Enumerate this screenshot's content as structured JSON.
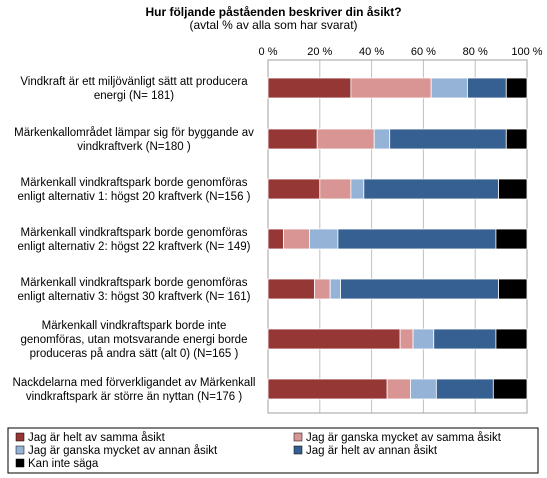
{
  "chart_data": {
    "type": "bar",
    "orientation": "horizontal",
    "stacked": true,
    "title": "Hur följande påståenden beskriver din åsikt?",
    "subtitle": "(avtal % av alla som har svarat)",
    "xlim": [
      0,
      100
    ],
    "xticks": [
      "0 %",
      "20 %",
      "40 %",
      "60 %",
      "80 %",
      "100 %"
    ],
    "categories": [
      [
        "Vindkraft är ett miljövänligt sätt att producera",
        "energi (N= 181)"
      ],
      [
        "Märkenkallområdet lämpar sig för byggande av",
        "vindkraftverk (N=180 )"
      ],
      [
        "Märkenkall vindkraftspark borde genomföras",
        "enligt alternativ 1: högst 20 kraftverk (N=156 )"
      ],
      [
        "Märkenkall vindkraftspark borde genomföras",
        "enligt alternativ 2: högst 22 kraftverk (N= 149)"
      ],
      [
        "Märkenkall vindkraftspark borde genomföras",
        "enligt alternativ 3: högst 30 kraftverk (N= 161)"
      ],
      [
        "Märkenkall vindkraftspark borde inte",
        "genomföras, utan motsvarande energi borde",
        "produceras på andra sätt (alt 0) (N=165 )"
      ],
      [
        "Nackdelarna med förverkligandet av Märkenkall",
        "vindkraftspark är större än nyttan (N=176 )"
      ]
    ],
    "series": [
      {
        "name": "Jag är helt av samma åsikt",
        "color": "#953735",
        "values": [
          32,
          19,
          20,
          6,
          18,
          51,
          46
        ]
      },
      {
        "name": "Jag är ganska mycket av samma åsikt",
        "color": "#D99594",
        "values": [
          31,
          22,
          12,
          10,
          6,
          5,
          9
        ]
      },
      {
        "name": "Jag är ganska mycket av annan åsikt",
        "color": "#95B3D7",
        "values": [
          14,
          6,
          5,
          11,
          4,
          8,
          10
        ]
      },
      {
        "name": "Jag är helt av annan åsikt",
        "color": "#366092",
        "values": [
          15,
          45,
          52,
          61,
          61,
          24,
          22
        ]
      },
      {
        "name": "Kan inte säga",
        "color": "#000000",
        "values": [
          8,
          8,
          11,
          12,
          11,
          12,
          13
        ]
      }
    ],
    "grid": true,
    "legend": "bottom"
  }
}
